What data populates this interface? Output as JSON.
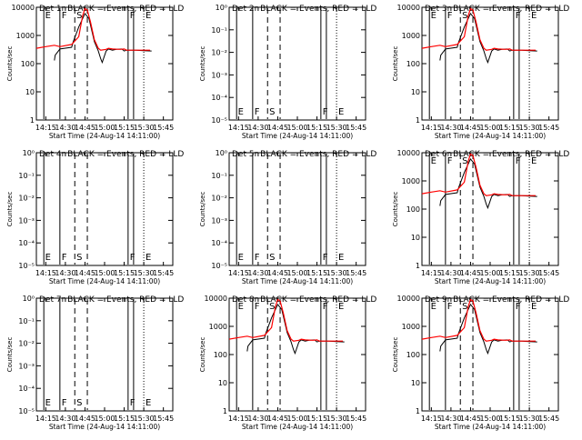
{
  "chart_data": [
    {
      "type": "line",
      "title": "Det 1r BLACK = Events, RED = LLD",
      "ylabel": "Counts/sec",
      "yscale": "log",
      "yticks": [
        "1",
        "10",
        "100",
        "1000",
        "10000"
      ],
      "markers": [
        "E",
        "F",
        "S",
        "F",
        "E"
      ],
      "series": [
        {
          "name": "BLACK = Events",
          "color": "#000000",
          "x": [
            14.25,
            14.36,
            14.37,
            14.43,
            14.58,
            14.6,
            14.67,
            14.75,
            14.8,
            14.87,
            14.92,
            14.95,
            14.97,
            15.02,
            15.05,
            15.1,
            15.15,
            15.22,
            15.25,
            15.28,
            15.4,
            15.5,
            15.6
          ],
          "y": [
            null,
            130,
            200,
            330,
            380,
            600,
            2000,
            6000,
            4000,
            600,
            280,
            150,
            110,
            280,
            330,
            300,
            320,
            330,
            280,
            300,
            300,
            290,
            280
          ]
        },
        {
          "name": "RED = LLD",
          "color": "#ff0000",
          "x": [
            14.13,
            14.25,
            14.36,
            14.43,
            14.58,
            14.67,
            14.72,
            14.75,
            14.78,
            14.82,
            14.87,
            14.92,
            14.95,
            15.02,
            15.05,
            15.1,
            15.2,
            15.25,
            15.28,
            15.4,
            15.5,
            15.58
          ],
          "y": [
            350,
            400,
            450,
            400,
            480,
            900,
            5000,
            9000,
            8000,
            3000,
            700,
            350,
            300,
            320,
            350,
            330,
            320,
            330,
            300,
            300,
            300,
            300
          ]
        }
      ]
    },
    {
      "type": "line",
      "title": "Det 2r BLACK = Events, RED = LLD",
      "ylabel": "Counts/sec",
      "yscale": "log",
      "yticks": [
        "10⁻⁵",
        "10⁻⁴",
        "10⁻³",
        "10⁻²",
        "10⁻¹",
        "10⁰"
      ],
      "markers": [
        "E",
        "F",
        "S",
        "F",
        "E"
      ],
      "series": []
    },
    {
      "type": "line",
      "title": "Det 3r BLACK = Events, RED = LLD",
      "ylabel": "Counts/sec",
      "yscale": "log",
      "yticks": [
        "1",
        "10",
        "100",
        "1000",
        "10000"
      ],
      "markers": [
        "E",
        "F",
        "S",
        "F",
        "E"
      ],
      "series": [
        {
          "name": "BLACK = Events",
          "color": "#000000",
          "x": [
            14.25,
            14.36,
            14.37,
            14.43,
            14.58,
            14.6,
            14.67,
            14.75,
            14.8,
            14.87,
            14.92,
            14.95,
            14.97,
            15.02,
            15.05,
            15.1,
            15.15,
            15.22,
            15.25,
            15.28,
            15.4,
            15.5,
            15.6
          ],
          "y": [
            null,
            130,
            200,
            330,
            380,
            600,
            2000,
            6000,
            4000,
            600,
            280,
            150,
            110,
            280,
            330,
            300,
            320,
            330,
            280,
            300,
            300,
            290,
            280
          ]
        },
        {
          "name": "RED = LLD",
          "color": "#ff0000",
          "x": [
            14.13,
            14.25,
            14.36,
            14.43,
            14.58,
            14.67,
            14.72,
            14.75,
            14.78,
            14.82,
            14.87,
            14.92,
            14.95,
            15.02,
            15.05,
            15.1,
            15.2,
            15.25,
            15.28,
            15.4,
            15.5,
            15.58
          ],
          "y": [
            350,
            400,
            450,
            400,
            480,
            900,
            5000,
            9000,
            8000,
            3000,
            700,
            350,
            300,
            320,
            350,
            330,
            320,
            330,
            300,
            300,
            300,
            300
          ]
        }
      ]
    },
    {
      "type": "line",
      "title": "Det 4r BLACK = Events, RED = LLD",
      "ylabel": "Counts/sec",
      "yscale": "log",
      "yticks": [
        "10⁻⁵",
        "10⁻⁴",
        "10⁻³",
        "10⁻²",
        "10⁻¹",
        "10⁰"
      ],
      "markers": [
        "E",
        "F",
        "S",
        "F",
        "E"
      ],
      "series": []
    },
    {
      "type": "line",
      "title": "Det 5r BLACK = Events, RED = LLD",
      "ylabel": "Counts/sec",
      "yscale": "log",
      "yticks": [
        "10⁻⁵",
        "10⁻⁴",
        "10⁻³",
        "10⁻²",
        "10⁻¹",
        "10⁰"
      ],
      "markers": [
        "E",
        "F",
        "S",
        "F",
        "E"
      ],
      "series": []
    },
    {
      "type": "line",
      "title": "Det 6r BLACK = Events, RED = LLD",
      "ylabel": "Counts/sec",
      "yscale": "log",
      "yticks": [
        "1",
        "10",
        "100",
        "1000",
        "10000"
      ],
      "markers": [
        "E",
        "F",
        "S",
        "F",
        "E"
      ],
      "series": [
        {
          "name": "BLACK = Events",
          "color": "#000000",
          "x": [
            14.25,
            14.36,
            14.37,
            14.43,
            14.58,
            14.6,
            14.67,
            14.75,
            14.8,
            14.87,
            14.92,
            14.95,
            14.97,
            15.02,
            15.05,
            15.1,
            15.15,
            15.22,
            15.25,
            15.28,
            15.4,
            15.5,
            15.6
          ],
          "y": [
            null,
            130,
            200,
            330,
            380,
            600,
            2000,
            6000,
            4000,
            600,
            280,
            150,
            110,
            280,
            330,
            300,
            320,
            330,
            280,
            300,
            300,
            290,
            280
          ]
        },
        {
          "name": "RED = LLD",
          "color": "#ff0000",
          "x": [
            14.13,
            14.25,
            14.36,
            14.43,
            14.58,
            14.67,
            14.72,
            14.75,
            14.78,
            14.82,
            14.87,
            14.92,
            14.95,
            15.02,
            15.05,
            15.1,
            15.2,
            15.25,
            15.28,
            15.4,
            15.5,
            15.58
          ],
          "y": [
            350,
            400,
            450,
            400,
            480,
            900,
            5000,
            9000,
            8000,
            3000,
            700,
            350,
            300,
            320,
            350,
            330,
            320,
            330,
            300,
            300,
            300,
            300
          ]
        }
      ]
    },
    {
      "type": "line",
      "title": "Det 7r BLACK = Events, RED = LLD",
      "ylabel": "Counts/sec",
      "yscale": "log",
      "yticks": [
        "10⁻⁵",
        "10⁻⁴",
        "10⁻³",
        "10⁻²",
        "10⁻¹",
        "10⁰"
      ],
      "markers": [
        "E",
        "F",
        "S",
        "F",
        "E"
      ],
      "series": []
    },
    {
      "type": "line",
      "title": "Det 8r BLACK = Events, RED = LLD",
      "ylabel": "Counts/sec",
      "yscale": "log",
      "yticks": [
        "1",
        "10",
        "100",
        "1000",
        "10000"
      ],
      "markers": [
        "E",
        "F",
        "S",
        "F",
        "E"
      ],
      "series": [
        {
          "name": "BLACK = Events",
          "color": "#000000",
          "x": [
            14.25,
            14.36,
            14.37,
            14.43,
            14.58,
            14.6,
            14.67,
            14.75,
            14.8,
            14.87,
            14.92,
            14.95,
            14.97,
            15.02,
            15.05,
            15.1,
            15.15,
            15.22,
            15.25,
            15.28,
            15.4,
            15.5,
            15.6
          ],
          "y": [
            null,
            130,
            200,
            330,
            380,
            600,
            2000,
            6000,
            4000,
            600,
            280,
            150,
            110,
            280,
            330,
            300,
            320,
            330,
            280,
            300,
            300,
            290,
            280
          ]
        },
        {
          "name": "RED = LLD",
          "color": "#ff0000",
          "x": [
            14.13,
            14.25,
            14.36,
            14.43,
            14.58,
            14.67,
            14.72,
            14.75,
            14.78,
            14.82,
            14.87,
            14.92,
            14.95,
            15.02,
            15.05,
            15.1,
            15.2,
            15.25,
            15.28,
            15.4,
            15.5,
            15.58
          ],
          "y": [
            350,
            400,
            450,
            400,
            480,
            900,
            5000,
            9000,
            8000,
            3000,
            700,
            350,
            300,
            320,
            350,
            330,
            320,
            330,
            300,
            300,
            300,
            300
          ]
        }
      ]
    },
    {
      "type": "line",
      "title": "Det 9r BLACK = Events, RED = LLD",
      "ylabel": "Counts/sec",
      "yscale": "log",
      "yticks": [
        "1",
        "10",
        "100",
        "1000",
        "10000"
      ],
      "markers": [
        "E",
        "F",
        "S",
        "F",
        "E"
      ],
      "series": [
        {
          "name": "BLACK = Events",
          "color": "#000000",
          "x": [
            14.25,
            14.36,
            14.37,
            14.43,
            14.58,
            14.6,
            14.67,
            14.75,
            14.8,
            14.87,
            14.92,
            14.95,
            14.97,
            15.02,
            15.05,
            15.1,
            15.15,
            15.22,
            15.25,
            15.28,
            15.4,
            15.5,
            15.6
          ],
          "y": [
            null,
            130,
            200,
            330,
            380,
            600,
            2000,
            6000,
            4000,
            600,
            280,
            150,
            110,
            280,
            330,
            300,
            320,
            330,
            280,
            300,
            300,
            290,
            280
          ]
        },
        {
          "name": "RED = LLD",
          "color": "#ff0000",
          "x": [
            14.13,
            14.25,
            14.36,
            14.43,
            14.58,
            14.67,
            14.72,
            14.75,
            14.78,
            14.82,
            14.87,
            14.92,
            14.95,
            15.02,
            15.05,
            15.1,
            15.2,
            15.25,
            15.28,
            15.4,
            15.5,
            15.58
          ],
          "y": [
            350,
            400,
            450,
            400,
            480,
            900,
            5000,
            9000,
            8000,
            3000,
            700,
            350,
            300,
            320,
            350,
            330,
            320,
            330,
            300,
            300,
            300,
            300
          ]
        }
      ]
    }
  ],
  "xaxis": {
    "label": "Start Time (24-Aug-14 14:11:00)",
    "ticks": [
      "14:15",
      "14:30",
      "14:45",
      "15:00",
      "15:15",
      "15:30",
      "15:45"
    ]
  }
}
